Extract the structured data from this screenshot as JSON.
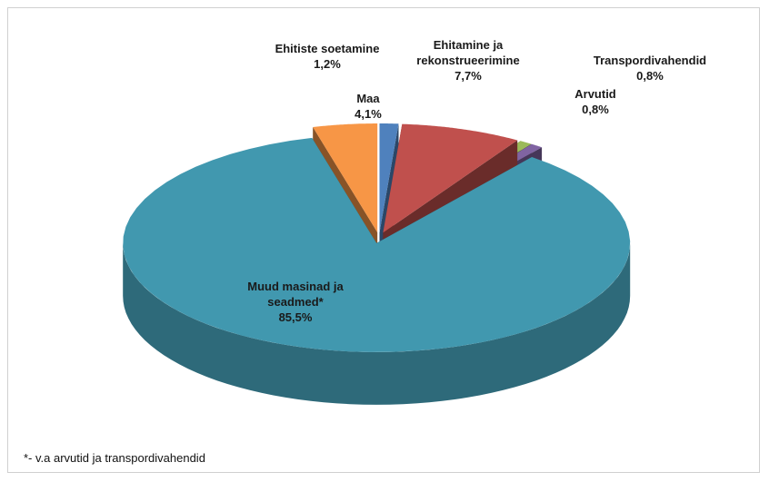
{
  "chart_data": {
    "type": "pie",
    "categories": [
      "Ehitiste soetamine",
      "Ehitamine ja rekonstrueerimine",
      "Transpordivahendid",
      "Arvutid",
      "Muud masinad ja seadmed*",
      "Maa"
    ],
    "values": [
      1.2,
      7.7,
      0.8,
      0.8,
      85.5,
      4.1
    ],
    "value_labels": [
      "1,2%",
      "7,7%",
      "0,8%",
      "0,8%",
      "85,5%",
      "4,1%"
    ],
    "colors": [
      "#4f81bd",
      "#c0504d",
      "#9bbb59",
      "#8064a2",
      "#4198af",
      "#f79646"
    ],
    "footnote": "*- v.a arvutid ja transpordivahendid"
  }
}
